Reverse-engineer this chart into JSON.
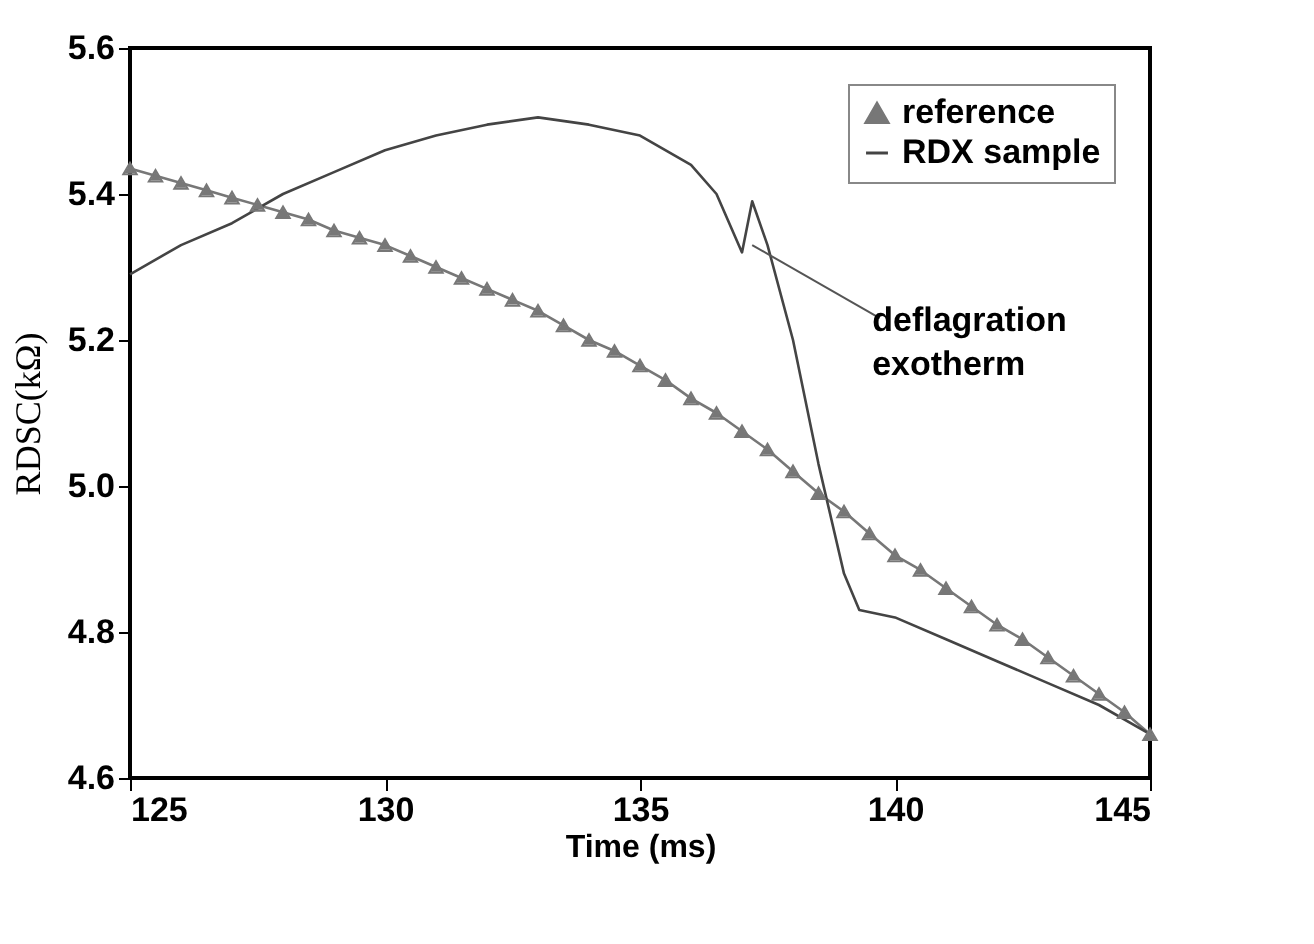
{
  "chart_data": {
    "type": "line",
    "xlabel": "Time (ms)",
    "ylabel": "RDSC(kΩ)",
    "xlim": [
      125,
      145
    ],
    "xticks": [
      125,
      130,
      135,
      140,
      145
    ],
    "ylim": [
      4.6,
      5.6
    ],
    "yticks": [
      {
        "value": 4.6,
        "label": "4.6"
      },
      {
        "value": 4.8,
        "label": "4.8"
      },
      {
        "value": 5.0,
        "label": "5.0"
      },
      {
        "value": 5.2,
        "label": "5.2"
      },
      {
        "value": 5.4,
        "label": "5.4"
      },
      {
        "value": 5.6,
        "label": "5.6"
      }
    ],
    "grid": false,
    "legend": "top right",
    "annotations": [
      {
        "text": "deflagration exotherm",
        "x": 137.2,
        "y": 5.33
      }
    ],
    "series": [
      {
        "name": "reference",
        "color": "#777777",
        "marker": "triangle",
        "x": [
          125,
          125.5,
          126,
          126.5,
          127,
          127.5,
          128,
          128.5,
          129,
          129.5,
          130,
          130.5,
          131,
          131.5,
          132,
          132.5,
          133,
          133.5,
          134,
          134.5,
          135,
          135.5,
          136,
          136.5,
          137,
          137.5,
          138,
          138.5,
          139,
          139.5,
          140,
          140.5,
          141,
          141.5,
          142,
          142.5,
          143,
          143.5,
          144,
          144.5,
          145
        ],
        "values": [
          5.435,
          5.425,
          5.415,
          5.405,
          5.395,
          5.385,
          5.375,
          5.365,
          5.35,
          5.34,
          5.33,
          5.315,
          5.3,
          5.285,
          5.27,
          5.255,
          5.24,
          5.22,
          5.2,
          5.185,
          5.165,
          5.145,
          5.12,
          5.1,
          5.075,
          5.05,
          5.02,
          4.99,
          4.965,
          4.935,
          4.905,
          4.885,
          4.86,
          4.835,
          4.81,
          4.79,
          4.765,
          4.74,
          4.715,
          4.69,
          4.66
        ]
      },
      {
        "name": "RDX sample",
        "color": "#444444",
        "marker": "none",
        "x": [
          125,
          126,
          127,
          128,
          129,
          130,
          131,
          132,
          133,
          134,
          135,
          136,
          136.5,
          137,
          137.2,
          137.5,
          138,
          138.5,
          139,
          139.3,
          140,
          141,
          142,
          143,
          144,
          145
        ],
        "values": [
          5.29,
          5.33,
          5.36,
          5.4,
          5.43,
          5.46,
          5.48,
          5.495,
          5.505,
          5.495,
          5.48,
          5.44,
          5.4,
          5.32,
          5.39,
          5.33,
          5.2,
          5.03,
          4.88,
          4.83,
          4.82,
          4.79,
          4.76,
          4.73,
          4.7,
          4.66
        ]
      }
    ]
  }
}
